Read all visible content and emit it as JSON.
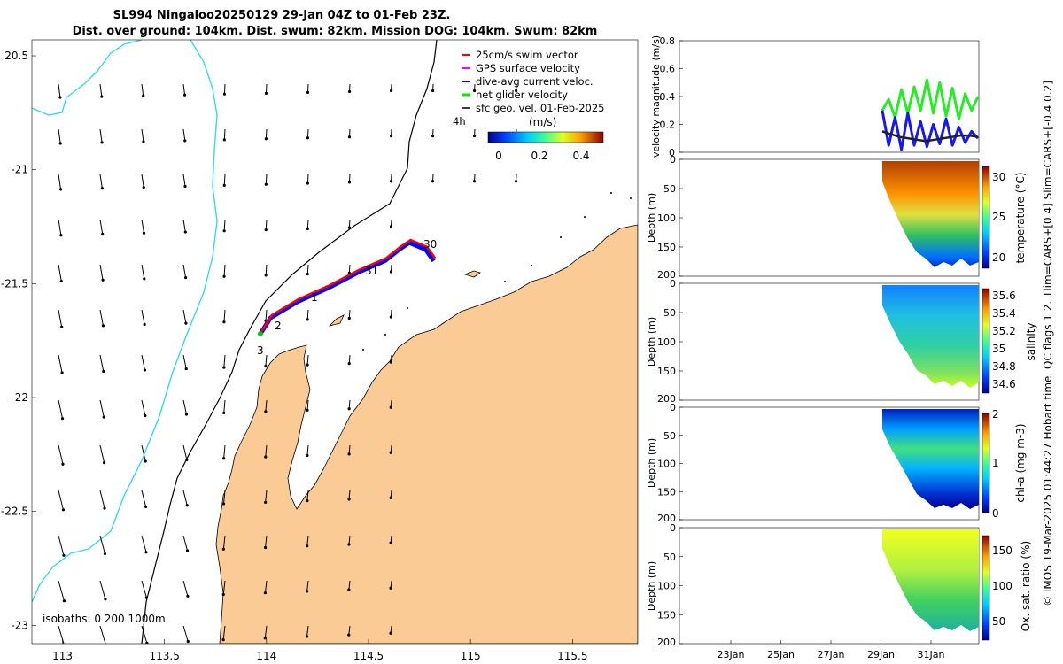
{
  "title": {
    "line1": "SL994 Ningaloo20250129 29-Jan 04Z to 01-Feb 23Z.",
    "line2": "Dist. over ground: 104km. Dist. swum: 82km. Mission DOG: 104km. Swum: 82km"
  },
  "map": {
    "lon_ticks": [
      "113",
      "113.5",
      "114",
      "114.5",
      "115",
      "115.5"
    ],
    "lat_ticks": [
      "20.5",
      "-21",
      "-21.5",
      "-22",
      "-22.5",
      "-23"
    ],
    "legend": [
      {
        "label": "25cm/s swim vector",
        "color": "#ff0000"
      },
      {
        "label": "GPS surface velocity",
        "color": "#ff00ff"
      },
      {
        "label": "dive-avg current veloc.",
        "color": "#0000ff"
      },
      {
        "label": "net glider velocity",
        "color": "#00ee00"
      },
      {
        "label": "sfc geo. vel. 01-Feb-2025",
        "color": "#000000"
      }
    ],
    "legend_marker": "4h",
    "colorbar_unit": "(m/s)",
    "colorbar_ticks": [
      "0",
      "0.2",
      "0.4"
    ],
    "day_labels": [
      "30",
      "31",
      "1",
      "2",
      "3"
    ],
    "isobath_note": "isobaths: 0   200  1000m",
    "colors": {
      "land": "#fbcb96",
      "coast_line": "#33dddd",
      "track_red": "#ff0000",
      "track_blue": "#0000ff"
    }
  },
  "panels": {
    "velocity": {
      "ylabel": "velocity magnitude (m/s)",
      "yticks": [
        "0",
        "0.2",
        "0.4",
        "0.6",
        "0.8"
      ]
    },
    "temperature": {
      "ylabel": "Depth (m)",
      "cbar_label": "temperature (°C)",
      "cbar_ticks": [
        "30",
        "25",
        "20"
      ]
    },
    "salinity": {
      "ylabel": "Depth (m)",
      "cbar_label": "salinity",
      "cbar_ticks": [
        "35.6",
        "35.4",
        "35.2",
        "35",
        "34.8",
        "34.6"
      ]
    },
    "chla": {
      "ylabel": "Depth (m)",
      "cbar_label": "chl-a (mg m-3)",
      "cbar_ticks": [
        "2",
        "1",
        "0"
      ]
    },
    "oxygen": {
      "ylabel": "Depth (m)",
      "cbar_label": "Ox. sat. ratio (%)",
      "cbar_ticks": [
        "150",
        "100",
        "50"
      ]
    },
    "depth_ticks": [
      "0",
      "50",
      "100",
      "150",
      "200"
    ],
    "date_ticks": [
      "23Jan",
      "25Jan",
      "27Jan",
      "29Jan",
      "31Jan"
    ]
  },
  "side_note": "© IMOS 19-Mar-2025 01:44:27 Hobart time. QC flags 1  2. Tlim=CARS+[0 4] Slim=CARS+[-0.4 0.2]",
  "chart_data": [
    {
      "type": "scatter",
      "title": "SL994 Ningaloo20250129 29-Jan 04Z to 01-Feb 23Z.",
      "xlabel": "",
      "ylabel": "",
      "xlim": [
        112.85,
        115.82
      ],
      "ylim": [
        -23.08,
        -20.43
      ],
      "series": [
        {
          "name": "glider track (approx.)",
          "x": [
            113.97,
            114.02,
            114.15,
            114.3,
            114.45,
            114.58,
            114.65,
            114.7,
            114.78,
            114.82
          ],
          "y": [
            -21.72,
            -21.65,
            -21.58,
            -21.52,
            -21.45,
            -21.4,
            -21.35,
            -21.32,
            -21.35,
            -21.4
          ]
        }
      ]
    },
    {
      "type": "line",
      "xlabel": "",
      "ylabel": "velocity magnitude (m/s)",
      "ylim": [
        0,
        0.8
      ],
      "series": [
        {
          "name": "net glider velocity",
          "values": [
            0.3,
            0.38,
            0.25,
            0.45,
            0.28,
            0.47,
            0.3,
            0.52,
            0.28,
            0.5,
            0.26,
            0.46,
            0.24,
            0.42,
            0.3,
            0.4
          ]
        },
        {
          "name": "dive-avg current veloc.",
          "values": [
            0.3,
            0.05,
            0.25,
            0.02,
            0.28,
            0.05,
            0.22,
            0.04,
            0.2,
            0.06,
            0.24,
            0.05,
            0.18,
            0.07,
            0.15,
            0.1
          ]
        },
        {
          "name": "sfc geo. vel.",
          "values": [
            0.15,
            0.13,
            0.11,
            0.1,
            0.09,
            0.08,
            0.09,
            0.1,
            0.11,
            0.12,
            0.12,
            0.11
          ]
        }
      ]
    }
  ]
}
